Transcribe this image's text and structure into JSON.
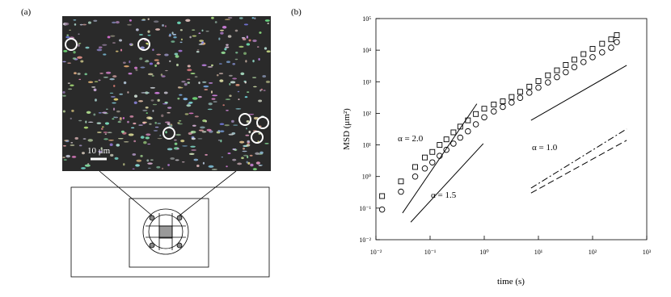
{
  "panel_a": {
    "label": "(a)",
    "scale_bar": "10 μm"
  },
  "chart_data": {
    "type": "scatter",
    "label": "(b)",
    "xlabel": "time (s)",
    "ylabel": "MSD (μm²)",
    "xscale": "log",
    "yscale": "log",
    "xlim": [
      0.01,
      1000
    ],
    "ylim": [
      0.01,
      100000
    ],
    "xticks": [
      {
        "value": 0.01,
        "label": "10⁻²"
      },
      {
        "value": 0.1,
        "label": "10⁻¹"
      },
      {
        "value": 1,
        "label": "10⁰"
      },
      {
        "value": 10,
        "label": "10¹"
      },
      {
        "value": 100,
        "label": "10²"
      },
      {
        "value": 1000,
        "label": "10³"
      }
    ],
    "yticks": [
      {
        "value": 0.01,
        "label": "10⁻²"
      },
      {
        "value": 0.1,
        "label": "10⁻¹"
      },
      {
        "value": 1,
        "label": "10⁰"
      },
      {
        "value": 10,
        "label": "10¹"
      },
      {
        "value": 100,
        "label": "10²"
      },
      {
        "value": 1000,
        "label": "10³"
      },
      {
        "value": 10000,
        "label": "10⁴"
      },
      {
        "value": 100000,
        "label": "10⁵"
      }
    ],
    "series": [
      {
        "marker": "square",
        "color": "#000",
        "x": [
          0.013,
          0.029,
          0.053,
          0.08,
          0.11,
          0.15,
          0.2,
          0.27,
          0.36,
          0.5,
          0.7,
          1.0,
          1.5,
          2.2,
          3.2,
          4.6,
          6.8,
          10,
          15,
          22,
          32,
          46,
          68,
          100,
          150,
          220,
          280
        ],
        "values": [
          0.24,
          0.7,
          2.0,
          4,
          6,
          10,
          15,
          25,
          38,
          60,
          95,
          140,
          190,
          240,
          330,
          480,
          700,
          1050,
          1600,
          2300,
          3400,
          5000,
          7500,
          11000,
          16000,
          22000,
          30000
        ]
      },
      {
        "marker": "circle",
        "color": "#000",
        "x": [
          0.013,
          0.029,
          0.053,
          0.08,
          0.11,
          0.15,
          0.2,
          0.27,
          0.36,
          0.5,
          0.7,
          1.0,
          1.5,
          2.2,
          3.2,
          4.6,
          6.8,
          10,
          15,
          22,
          32,
          46,
          68,
          100,
          150,
          220,
          280
        ],
        "values": [
          0.09,
          0.33,
          1.0,
          1.8,
          2.8,
          4.5,
          7,
          11,
          17,
          27,
          45,
          75,
          115,
          160,
          220,
          310,
          450,
          650,
          950,
          1400,
          2000,
          2900,
          4200,
          6000,
          8500,
          12000,
          18000
        ]
      }
    ],
    "lines": [
      {
        "dash": "solid",
        "x": [
          0.031,
          0.73
        ],
        "values": [
          0.07,
          200
        ]
      },
      {
        "dash": "solid",
        "x": [
          0.044,
          0.96
        ],
        "values": [
          0.036,
          11
        ]
      },
      {
        "dash": "solid",
        "x": [
          7.3,
          426
        ],
        "values": [
          60,
          3300
        ]
      },
      {
        "dash": "dashdot",
        "x": [
          7.3,
          426
        ],
        "values": [
          0.43,
          32
        ]
      },
      {
        "dash": "dashed",
        "x": [
          7.3,
          426
        ],
        "values": [
          0.3,
          14
        ]
      }
    ],
    "annotations": [
      "α = 2.0",
      "α = 1.5",
      "α = 1.0"
    ]
  }
}
